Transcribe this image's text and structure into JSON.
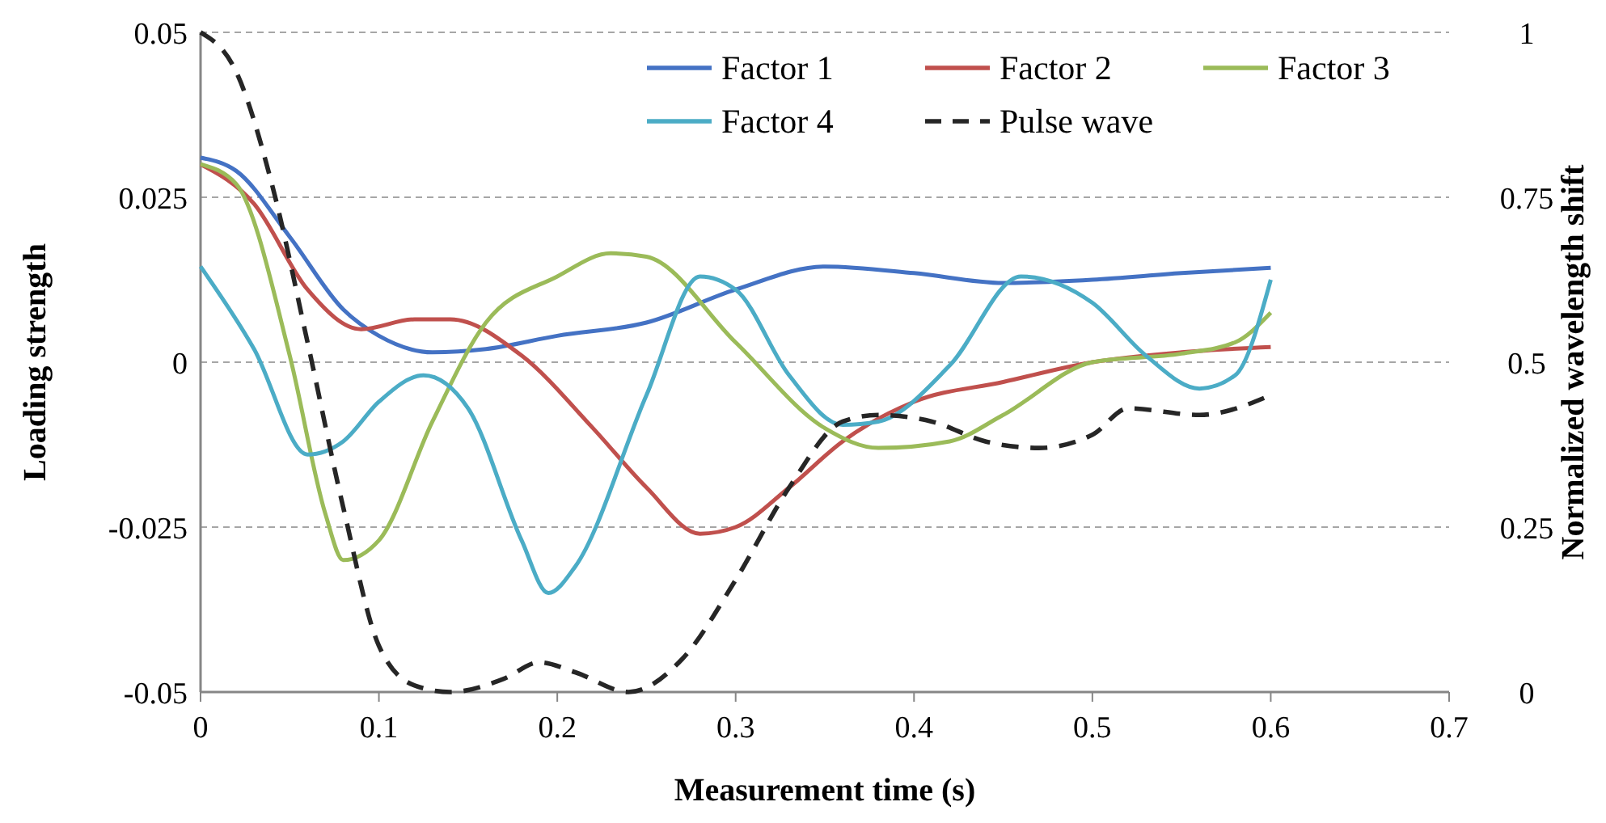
{
  "chart_data": {
    "type": "line",
    "xlabel": "Measurement time (s)",
    "ylabel": "Loading strength",
    "y2label": "Normalized wavelength shift",
    "xlim": [
      0,
      0.7
    ],
    "xticks": [
      0,
      0.1,
      0.2,
      0.3,
      0.4,
      0.5,
      0.6,
      0.7
    ],
    "ylim": [
      -0.05,
      0.05
    ],
    "yticks": [
      -0.05,
      -0.025,
      0,
      0.025,
      0.05
    ],
    "y2lim": [
      0,
      1
    ],
    "y2ticks": [
      0,
      0.25,
      0.5,
      0.75,
      1
    ],
    "grid": "y",
    "legend": "top right",
    "marker": "none",
    "series": [
      {
        "name": "Factor 1",
        "color": "#4472c4",
        "x": [
          0,
          0.02,
          0.05,
          0.08,
          0.1,
          0.13,
          0.16,
          0.2,
          0.25,
          0.3,
          0.35,
          0.4,
          0.45,
          0.5,
          0.55,
          0.6
        ],
        "values": [
          0.031,
          0.029,
          0.019,
          0.008,
          0.004,
          0.0015,
          0.002,
          0.004,
          0.006,
          0.011,
          0.0145,
          0.0135,
          0.012,
          0.0125,
          0.0135,
          0.0143
        ]
      },
      {
        "name": "Factor 2",
        "color": "#c0504d",
        "x": [
          0,
          0.03,
          0.06,
          0.09,
          0.12,
          0.14,
          0.18,
          0.22,
          0.25,
          0.28,
          0.3,
          0.33,
          0.36,
          0.4,
          0.45,
          0.5,
          0.55,
          0.6
        ],
        "values": [
          0.03,
          0.024,
          0.011,
          0.005,
          0.0065,
          0.0065,
          0.001,
          -0.01,
          -0.019,
          -0.026,
          -0.025,
          -0.019,
          -0.012,
          -0.006,
          -0.003,
          0,
          0.0015,
          0.0023
        ]
      },
      {
        "name": "Factor 3",
        "color": "#9bbb59",
        "x": [
          0,
          0.02,
          0.05,
          0.07,
          0.08,
          0.1,
          0.13,
          0.16,
          0.2,
          0.23,
          0.25,
          0.3,
          0.35,
          0.38,
          0.42,
          0.45,
          0.5,
          0.55,
          0.58,
          0.6
        ],
        "values": [
          0.03,
          0.027,
          0.001,
          -0.023,
          -0.03,
          -0.027,
          -0.009,
          0.006,
          0.013,
          0.0165,
          0.016,
          0.003,
          -0.01,
          -0.013,
          -0.012,
          -0.008,
          0,
          0.0013,
          0.003,
          0.0075
        ]
      },
      {
        "name": "Factor 4",
        "color": "#4bacc6",
        "x": [
          0,
          0.03,
          0.06,
          0.08,
          0.1,
          0.125,
          0.15,
          0.18,
          0.195,
          0.21,
          0.25,
          0.28,
          0.3,
          0.33,
          0.36,
          0.38,
          0.42,
          0.46,
          0.5,
          0.53,
          0.56,
          0.58,
          0.6
        ],
        "values": [
          0.0145,
          0.002,
          -0.014,
          -0.012,
          -0.006,
          -0.002,
          -0.007,
          -0.027,
          -0.035,
          -0.031,
          -0.005,
          0.013,
          0.011,
          -0.002,
          -0.0095,
          -0.009,
          -0.0005,
          0.013,
          0.009,
          0.001,
          -0.004,
          -0.002,
          0.0125
        ]
      },
      {
        "name": "Pulse wave",
        "color": "#262626",
        "axis": "y2",
        "line_style": "dashed",
        "x": [
          0,
          0.02,
          0.04,
          0.06,
          0.08,
          0.1,
          0.12,
          0.14,
          0.17,
          0.19,
          0.21,
          0.24,
          0.27,
          0.3,
          0.33,
          0.36,
          0.38,
          0.41,
          0.44,
          0.47,
          0.5,
          0.52,
          0.56,
          0.6
        ],
        "values": [
          1,
          0.94,
          0.77,
          0.53,
          0.28,
          0.07,
          0.01,
          0,
          0.02,
          0.045,
          0.03,
          0,
          0.05,
          0.17,
          0.31,
          0.41,
          0.42,
          0.41,
          0.38,
          0.37,
          0.39,
          0.43,
          0.42,
          0.45
        ]
      }
    ]
  }
}
